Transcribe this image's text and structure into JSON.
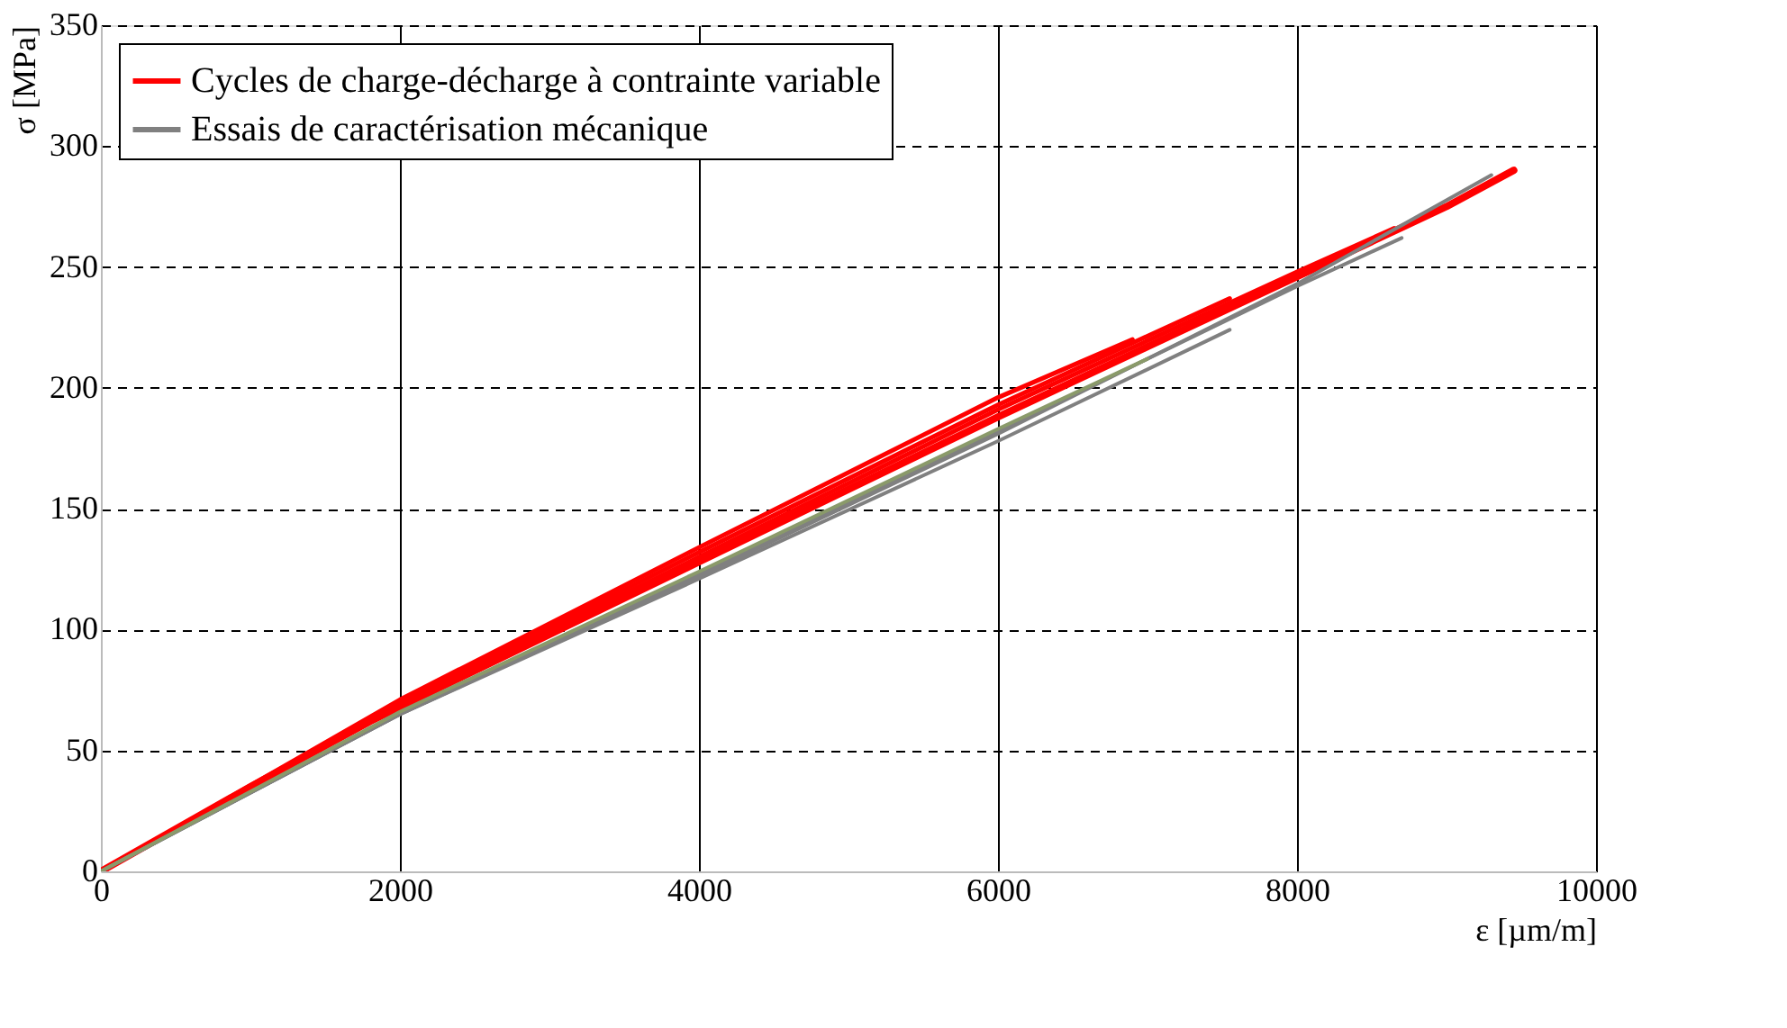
{
  "chart_data": {
    "type": "line",
    "xlabel": "ε [µm/m]",
    "ylabel": "σ [MPa]",
    "xlim": [
      0,
      10000
    ],
    "xticks": [
      0,
      2000,
      4000,
      6000,
      8000,
      10000
    ],
    "ylim": [
      0,
      350
    ],
    "yticks": [
      0,
      50,
      100,
      150,
      200,
      250,
      300,
      350
    ],
    "grid": true,
    "legend": "top left",
    "marker": "none",
    "line_style": "solid",
    "series": [
      {
        "name": "Cycles de charge-décharge à contrainte variable",
        "color": "#ff0000",
        "x": [
          0,
          1000,
          1800,
          2000,
          3000,
          4000,
          5000,
          6000,
          7000,
          8000,
          9000,
          9450
        ],
        "values": [
          0,
          35,
          62,
          68,
          98,
          128,
          158,
          188,
          217,
          246,
          275,
          290
        ]
      },
      {
        "color": "#ff0000",
        "x": [
          0,
          2000,
          4000,
          6000,
          6900
        ],
        "values": [
          0,
          71,
          134,
          196,
          220
        ]
      },
      {
        "color": "#ff0000",
        "x": [
          0,
          2000,
          4000,
          6000,
          8000,
          8650
        ],
        "values": [
          0,
          69,
          130,
          191,
          248,
          266
        ]
      },
      {
        "color": "#ff0000",
        "x": [
          0,
          2000,
          4000,
          6000,
          7550
        ],
        "values": [
          0,
          70,
          132,
          193,
          237
        ]
      },
      {
        "name": "Essais de caractérisation mécanique",
        "color": "#808080",
        "x": [
          0,
          2000,
          4000,
          6000,
          8000,
          9300
        ],
        "values": [
          0,
          65,
          122,
          181,
          243,
          288
        ]
      },
      {
        "color": "#808080",
        "x": [
          0,
          2000,
          4000,
          6000,
          7550
        ],
        "values": [
          0,
          65,
          121,
          178,
          224
        ]
      },
      {
        "color": "#808080",
        "x": [
          0,
          2000,
          4000,
          6000,
          8000,
          8700
        ],
        "values": [
          0,
          65,
          123,
          182,
          242,
          262
        ]
      },
      {
        "color": "#8a9a6a",
        "x": [
          0,
          2000,
          4000,
          6000,
          7000
        ],
        "values": [
          0,
          66,
          124,
          183,
          212
        ]
      }
    ]
  }
}
